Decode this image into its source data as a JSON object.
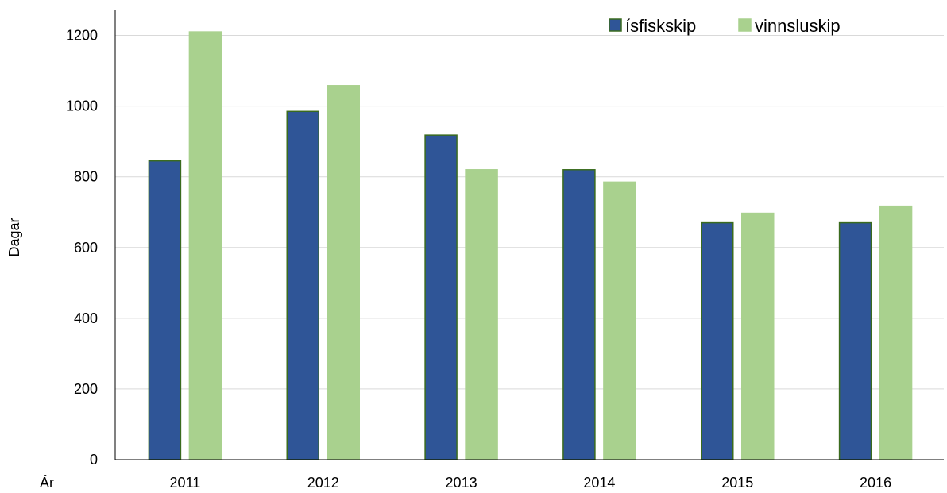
{
  "chart_data": {
    "type": "bar",
    "categories": [
      "2011",
      "2012",
      "2013",
      "2014",
      "2015",
      "2016"
    ],
    "series": [
      {
        "name": "ísfiskskip",
        "color": "#2F5597",
        "border_color": "#3A6B1E",
        "values": [
          845,
          985,
          918,
          820,
          670,
          670
        ]
      },
      {
        "name": "vinnsluskip",
        "color": "#A9D18E",
        "border_color": "#A9D18E",
        "values": [
          1210,
          1058,
          820,
          785,
          697,
          717
        ]
      }
    ],
    "title": "",
    "xlabel": "Ár",
    "ylabel": "Dagar",
    "ylim": [
      0,
      1300
    ],
    "yticks": [
      "0",
      "200",
      "400",
      "600",
      "800",
      "1000",
      "1200"
    ],
    "grid": true,
    "legend_position": "top-right"
  }
}
